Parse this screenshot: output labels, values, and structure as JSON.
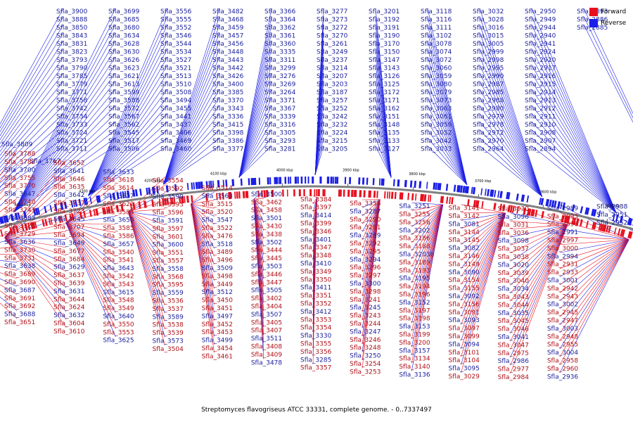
{
  "title": "Streptomyces flavogriseus ATCC 33331, complete genome. - 0..7337497",
  "legend": [
    {
      "name": "Forward",
      "color": "#e8101e"
    },
    {
      "name": "Reverse",
      "color": "#1a1ee6"
    }
  ],
  "colors": {
    "forward": "#e8101e",
    "reverse": "#1a1ee6",
    "backbone": "#808080"
  },
  "scale_marks": [
    "4500 kbp",
    "4400 kbp",
    "4300 kbp",
    "4200 kbp",
    "4100 kbp",
    "4000 kbp",
    "3900 kbp",
    "3800 kbp",
    "3700 kbp",
    "3600 kbp",
    "3500 kbp",
    "3400 kbp"
  ],
  "reverse_labels": [
    "Sfla_3900",
    "Sfla_3888",
    "Sfla_3850",
    "Sfla_3843",
    "Sfla_3831",
    "Sfla_3823",
    "Sfla_3793",
    "Sfla_3790",
    "Sfla_3785",
    "Sfla_3779",
    "Sfla_3771",
    "Sfla_3758",
    "Sfla_3742",
    "Sfla_3734",
    "Sfla_3733",
    "Sfla_3724",
    "Sfla_3721",
    "Sfla_3711",
    "Sfla_3699",
    "Sfla_3685",
    "Sfla_3680",
    "Sfla_3634",
    "Sfla_3628",
    "Sfla_3630",
    "Sfla_3626",
    "Sfla_3623",
    "Sfla_3621",
    "Sfla_3613",
    "Sfla_3599",
    "Sfla_3588",
    "Sfla_3572",
    "Sfla_3567",
    "Sfla_3562",
    "Sfla_3545",
    "Sfla_3517",
    "Sfla_3506",
    "Sfla_3556",
    "Sfla_3555",
    "Sfla_3552",
    "Sfla_3546",
    "Sfla_3544",
    "Sfla_3534",
    "Sfla_3527",
    "Sfla_3521",
    "Sfla_3513",
    "Sfla_3510",
    "Sfla_3508",
    "Sfla_3494",
    "Sfla_3455",
    "Sfla_3441",
    "Sfla_3437",
    "Sfla_3406",
    "Sfla_3469",
    "Sfla_3460",
    "Sfla_3482",
    "Sfla_3468",
    "Sfla_3459",
    "Sfla_3457",
    "Sfla_3456",
    "Sfla_3448",
    "Sfla_3443",
    "Sfla_3442",
    "Sfla_3426",
    "Sfla_3400",
    "Sfla_3385",
    "Sfla_3370",
    "Sfla_3343",
    "Sfla_3336",
    "Sfla_3415",
    "Sfla_3398",
    "Sfla_3386",
    "Sfla_3377",
    "Sfla_3366",
    "Sfla_3364",
    "Sfla_3362",
    "Sfla_3361",
    "Sfla_3360",
    "Sfla_3335",
    "Sfla_3311",
    "Sfla_3299",
    "Sfla_3276",
    "Sfla_3269",
    "Sfla_3264",
    "Sfla_3371",
    "Sfla_3367",
    "Sfla_3339",
    "Sfla_3316",
    "Sfla_3305",
    "Sfla_3293",
    "Sfla_3281",
    "Sfla_3277",
    "Sfla_3273",
    "Sfla_3272",
    "Sfla_3270",
    "Sfla_3261",
    "Sfla_3249",
    "Sfla_3237",
    "Sfla_3214",
    "Sfla_3207",
    "Sfla_3203",
    "Sfla_3187",
    "Sfla_3257",
    "Sfla_3252",
    "Sfla_3242",
    "Sfla_3232",
    "Sfla_3224",
    "Sfla_3215",
    "Sfla_3205",
    "Sfla_3201",
    "Sfla_3192",
    "Sfla_3191",
    "Sfla_3190",
    "Sfla_3170",
    "Sfla_3150",
    "Sfla_3147",
    "Sfla_3143",
    "Sfla_3126",
    "Sfla_3125",
    "Sfla_3172",
    "Sfla_3171",
    "Sfla_3162",
    "Sfla_3151",
    "Sfla_3148",
    "Sfla_3135",
    "Sfla_3133",
    "Sfla_3127",
    "Sfla_3118",
    "Sfla_3116",
    "Sfla_3111",
    "Sfla_3102",
    "Sfla_3078",
    "Sfla_3074",
    "Sfla_3072",
    "Sfla_3060",
    "Sfla_3059",
    "Sfla_3080",
    "Sfla_3079",
    "Sfla_3073",
    "Sfla_3063",
    "Sfla_3061",
    "Sfla_3058",
    "Sfla_3052",
    "Sfla_3042",
    "Sfla_3033",
    "Sfla_3032",
    "Sfla_3028",
    "Sfla_3016",
    "Sfla_3015",
    "Sfla_3005",
    "Sfla_2999",
    "Sfla_2998",
    "Sfla_2995",
    "Sfla_2990",
    "Sfla_2987",
    "Sfla_2985",
    "Sfla_2988",
    "Sfla_2980",
    "Sfla_2979",
    "Sfla_2978",
    "Sfla_2972",
    "Sfla_2970",
    "Sfla_2964",
    "Sfla_2950",
    "Sfla_2949",
    "Sfla_2944",
    "Sfla_2940",
    "Sfla_2941",
    "Sfla_2924",
    "Sfla_2920",
    "Sfla_2917",
    "Sfla_2916",
    "Sfla_2915",
    "Sfla_2914",
    "Sfla_2913",
    "Sfla_2912",
    "Sfla_2911",
    "Sfla_2910",
    "Sfla_2908",
    "Sfla_2907",
    "Sfla_2894",
    "Sfla_2893",
    "Sfla_2886",
    "Sfla_2885",
    "Sfla_3809",
    "Sfla_3767"
  ],
  "forward_labels": [
    "Sfla_3788",
    "Sfla_3782",
    "Sfla_3755",
    "Sfla_3770",
    "Sfla_3740",
    "Sfla_3743",
    "Sfla_3728",
    "Sfla_3729",
    "Sfla_3730",
    "Sfla_3731",
    "Sfla_3689",
    "Sfla_3690",
    "Sfla_3691",
    "Sfla_3692",
    "Sfla_3651",
    "Sfla_3652",
    "Sfla_3646",
    "Sfla_3635",
    "Sfla_3737",
    "Sfla_3723",
    "Sfla_3707",
    "Sfla_3694",
    "Sfla_3677",
    "Sfla_3684",
    "Sfla_3637",
    "Sfla_3639",
    "Sfla_3644",
    "Sfla_3624",
    "Sfla_3604",
    "Sfla_3610",
    "Sfla_3618",
    "Sfla_3614",
    "Sfla_3622",
    "Sfla_3584",
    "Sfla_3585",
    "Sfla_3586",
    "Sfla_3540",
    "Sfla_3541",
    "Sfla_3542",
    "Sfla_3543",
    "Sfla_3548",
    "Sfla_3549",
    "Sfla_3550",
    "Sfla_3553",
    "Sfla_3554",
    "Sfla_3592",
    "Sfla_3593",
    "Sfla_3596",
    "Sfla_3597",
    "Sfla_3601",
    "Sfla_3551",
    "Sfla_3557",
    "Sfla_3568",
    "Sfla_3595",
    "Sfla_3536",
    "Sfla_3537",
    "Sfla_3538",
    "Sfla_3539",
    "Sfla_3504",
    "Sfla_3514",
    "Sfla_3515",
    "Sfla_3520",
    "Sfla_3522",
    "Sfla_3476",
    "Sfla_3489",
    "Sfla_3496",
    "Sfla_3498",
    "Sfla_3449",
    "Sfla_3450",
    "Sfla_3451",
    "Sfla_3452",
    "Sfla_3453",
    "Sfla_3454",
    "Sfla_3461",
    "Sfla_3462",
    "Sfla_3458",
    "Sfla_3430",
    "Sfla_3438",
    "Sfla_3444",
    "Sfla_3445",
    "Sfla_3446",
    "Sfla_3447",
    "Sfla_3402",
    "Sfla_3404",
    "Sfla_3405",
    "Sfla_3407",
    "Sfla_3408",
    "Sfla_3409",
    "Sfla_3384",
    "Sfla_3397",
    "Sfla_3399",
    "Sfla_3346",
    "Sfla_3347",
    "Sfla_3348",
    "Sfla_3349",
    "Sfla_3350",
    "Sfla_3351",
    "Sfla_3352",
    "Sfla_3353",
    "Sfla_3354",
    "Sfla_3355",
    "Sfla_3356",
    "Sfla_3357",
    "Sfla_3358",
    "Sfla_3290",
    "Sfla_3291",
    "Sfla_3292",
    "Sfla_3295",
    "Sfla_3296",
    "Sfla_3297",
    "Sfla_3298",
    "Sfla_3241",
    "Sfla_3243",
    "Sfla_3244",
    "Sfla_3246",
    "Sfla_3248",
    "Sfla_3254",
    "Sfla_3253",
    "Sfla_3255",
    "Sfla_3256",
    "Sfla_3186",
    "Sfla_3188",
    "Sfla_3189",
    "Sfla_3193",
    "Sfla_3194",
    "Sfla_3196",
    "Sfla_3197",
    "Sfla_3198",
    "Sfla_3199",
    "Sfla_3200",
    "Sfla_3134",
    "Sfla_3140",
    "Sfla_3141",
    "Sfla_3142",
    "Sfla_3144",
    "Sfla_3145",
    "Sfla_3146",
    "Sfla_3149",
    "Sfla_3154",
    "Sfla_3155",
    "Sfla_3156",
    "Sfla_3091",
    "Sfla_3097",
    "Sfla_3099",
    "Sfla_3101",
    "Sfla_3104",
    "Sfla_3029",
    "Sfla_3030",
    "Sfla_3031",
    "Sfla_3036",
    "Sfla_3037",
    "Sfla_3038",
    "Sfla_3039",
    "Sfla_3040",
    "Sfla_3043",
    "Sfla_3044",
    "Sfla_3045",
    "Sfla_3046",
    "Sfla_3047",
    "Sfla_2975",
    "Sfla_2977",
    "Sfla_2984",
    "Sfla_2993",
    "Sfla_2996",
    "Sfla_2997",
    "Sfla_3000",
    "Sfla_2931",
    "Sfla_2933",
    "Sfla_2942",
    "Sfla_2943",
    "Sfla_2945",
    "Sfla_2947",
    "Sfla_2948",
    "Sfla_2955",
    "Sfla_2958",
    "Sfla_2960"
  ],
  "reverse_labels_lower": [
    "Sfla_3700",
    "Sfla_3647",
    "Sfla_3683",
    "Sfla_3636",
    "Sfla_3638",
    "Sfla_3687",
    "Sfla_3688",
    "Sfla_3641",
    "Sfla_3642",
    "Sfla_3645",
    "Sfla_3649",
    "Sfla_3629",
    "Sfla_3631",
    "Sfla_3632",
    "Sfla_3633",
    "Sfla_3627",
    "Sfla_3650",
    "Sfla_3657",
    "Sfla_3643",
    "Sfla_3615",
    "Sfla_3640",
    "Sfla_3625",
    "Sfla_3590",
    "Sfla_3591",
    "Sfla_3600",
    "Sfla_3558",
    "Sfla_3559",
    "Sfla_3589",
    "Sfla_3573",
    "Sfla_3563",
    "Sfla_3547",
    "Sfla_3518",
    "Sfla_3509",
    "Sfla_3512",
    "Sfla_3497",
    "Sfla_3499",
    "Sfla_3500",
    "Sfla_3501",
    "Sfla_3502",
    "Sfla_3503",
    "Sfla_3505",
    "Sfla_3507",
    "Sfla_3511",
    "Sfla_3478",
    "Sfla_3414",
    "Sfla_3401",
    "Sfla_3410",
    "Sfla_3411",
    "Sfla_3412",
    "Sfla_3330",
    "Sfla_3285",
    "Sfla_3287",
    "Sfla_3289",
    "Sfla_3294",
    "Sfla_3300",
    "Sfla_3245",
    "Sfla_3247",
    "Sfla_3250",
    "Sfla_3251",
    "Sfla_3202",
    "Sfla_3203b",
    "Sfla_3195",
    "Sfla_3152",
    "Sfla_3153",
    "Sfla_3157",
    "Sfla_3136",
    "Sfla_3081",
    "Sfla_3082",
    "Sfla_3090",
    "Sfla_3092",
    "Sfla_3093",
    "Sfla_3094",
    "Sfla_3095",
    "Sfla_3096",
    "Sfla_3098",
    "Sfla_3020",
    "Sfla_3034",
    "Sfla_3035",
    "Sfla_3041",
    "Sfla_2986",
    "Sfla_2989",
    "Sfla_2991",
    "Sfla_2994",
    "Sfla_3001",
    "Sfla_3002",
    "Sfla_3003",
    "Sfla_3004",
    "Sfla_2936",
    "Sfla_2938",
    "Sfla_2951",
    "Sfla_2952"
  ]
}
